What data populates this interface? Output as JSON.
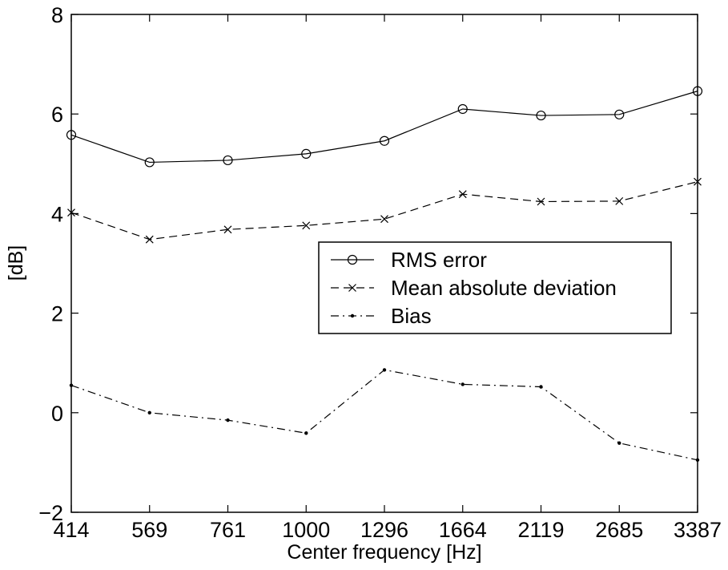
{
  "chart_data": {
    "type": "line",
    "title": "",
    "xlabel": "Center frequency [Hz]",
    "ylabel": "[dB]",
    "categories": [
      "414",
      "569",
      "761",
      "1000",
      "1296",
      "1664",
      "2119",
      "2685",
      "3387"
    ],
    "ylim": [
      -2,
      8
    ],
    "yticks": [
      "−2",
      "0",
      "2",
      "4",
      "6",
      "8"
    ],
    "grid": false,
    "legend_position": "center-right",
    "series": [
      {
        "name": "RMS error",
        "marker": "circle",
        "line_style": "solid",
        "values": [
          5.58,
          5.03,
          5.07,
          5.2,
          5.46,
          6.1,
          5.97,
          5.99,
          6.46
        ]
      },
      {
        "name": "Mean absolute deviation",
        "marker": "x",
        "line_style": "dashed",
        "values": [
          4.02,
          3.48,
          3.68,
          3.76,
          3.89,
          4.39,
          4.24,
          4.25,
          4.64
        ]
      },
      {
        "name": "Bias",
        "marker": "dot",
        "line_style": "dash-dot",
        "values": [
          0.55,
          0.0,
          -0.15,
          -0.41,
          0.86,
          0.57,
          0.52,
          -0.61,
          -0.95
        ]
      }
    ]
  }
}
